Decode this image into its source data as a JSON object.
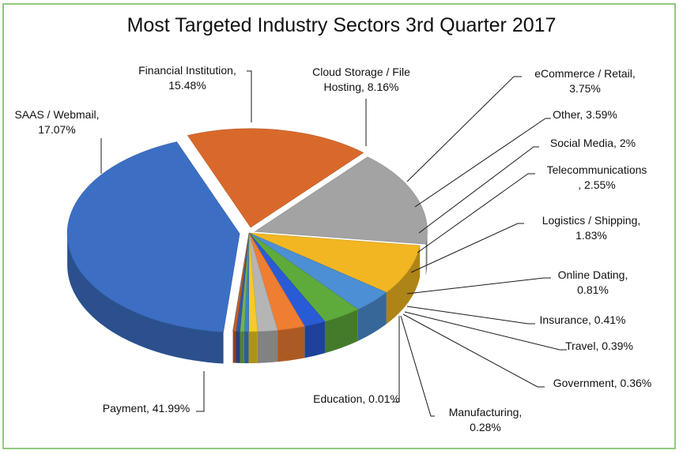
{
  "chart_data": {
    "type": "pie",
    "title": "Most Targeted Industry Sectors 3rd Quarter 2017",
    "three_d": true,
    "slices": [
      {
        "name": "Payment",
        "value": 41.99,
        "label_lines": [
          "Payment, 41.99%"
        ],
        "color": "#3c6fc4"
      },
      {
        "name": "SAAS / Webmail",
        "value": 17.07,
        "label_lines": [
          "SAAS / Webmail,",
          "17.07%"
        ],
        "color": "#d9692b"
      },
      {
        "name": "Financial Institution",
        "value": 15.48,
        "label_lines": [
          "Financial Institution,",
          "15.48%"
        ],
        "color": "#a3a3a3"
      },
      {
        "name": "Cloud Storage / File Hosting",
        "value": 8.16,
        "label_lines": [
          "Cloud Storage / File",
          "Hosting, 8.16%"
        ],
        "color": "#f1b622"
      },
      {
        "name": "eCommerce / Retail",
        "value": 3.75,
        "label_lines": [
          "eCommerce / Retail,",
          "3.75%"
        ],
        "color": "#4d8fd4"
      },
      {
        "name": "Other",
        "value": 3.59,
        "label_lines": [
          "Other, 3.59%"
        ],
        "color": "#5eab3c"
      },
      {
        "name": "Social Media",
        "value": 2,
        "label_lines": [
          "Social Media, 2%"
        ],
        "color": "#2a5bd6"
      },
      {
        "name": "Telecommunications",
        "value": 2.55,
        "label_lines": [
          "Telecommunications",
          ", 2.55%"
        ],
        "color": "#ef7d32"
      },
      {
        "name": "Logistics / Shipping",
        "value": 1.83,
        "label_lines": [
          "Logistics / Shipping,",
          "1.83%"
        ],
        "color": "#b5b5b5"
      },
      {
        "name": "Online Dating",
        "value": 0.81,
        "label_lines": [
          "Online Dating,",
          "0.81%"
        ],
        "color": "#f3cb2a"
      },
      {
        "name": "Insurance",
        "value": 0.41,
        "label_lines": [
          "Insurance, 0.41%"
        ],
        "color": "#3d82c8"
      },
      {
        "name": "Travel",
        "value": 0.39,
        "label_lines": [
          "Travel, 0.39%"
        ],
        "color": "#72b350"
      },
      {
        "name": "Government",
        "value": 0.36,
        "label_lines": [
          "Government, 0.36%"
        ],
        "color": "#3458a8"
      },
      {
        "name": "Manufacturing",
        "value": 0.28,
        "label_lines": [
          "Manufacturing,",
          "0.28%"
        ],
        "color": "#c65d24"
      },
      {
        "name": "Education",
        "value": 0.01,
        "label_lines": [
          "Education, 0.01%"
        ],
        "color": "#8b8b8b"
      }
    ]
  }
}
